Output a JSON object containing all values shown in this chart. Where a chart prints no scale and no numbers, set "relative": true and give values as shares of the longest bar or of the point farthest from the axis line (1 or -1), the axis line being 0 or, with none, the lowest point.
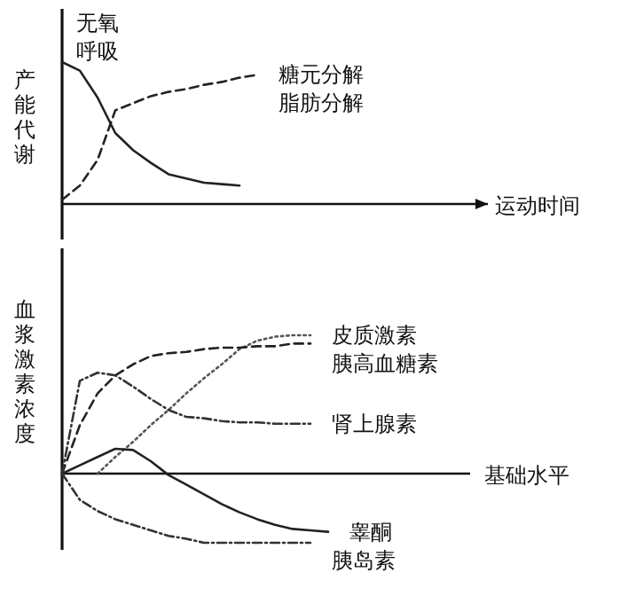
{
  "chart_data": [
    {
      "type": "line",
      "relative": true,
      "ylabel": "产能代谢",
      "xlabel": "运动时间",
      "categories": [
        null,
        null,
        null,
        null,
        null,
        null,
        null,
        null,
        null,
        null,
        null,
        null,
        null,
        null,
        null,
        null,
        null,
        null,
        null,
        null,
        null,
        null,
        null,
        null
      ],
      "series": [
        {
          "name": "无氧呼吸",
          "color": "#222222",
          "line_style": "solid",
          "values": [
            1,
            0.94,
            0.75,
            0.5,
            0.38,
            0.29,
            0.21,
            0.18,
            0.15,
            0.14,
            0.13,
            null,
            null,
            null,
            null,
            null,
            null,
            null,
            null,
            null,
            null,
            null,
            null,
            null
          ]
        },
        {
          "name": "糖元分解脂肪分解",
          "color": "#222222",
          "line_style": "dashed",
          "values": [
            0.03,
            0.13,
            0.31,
            0.66,
            0.71,
            0.76,
            0.79,
            0.81,
            0.84,
            0.86,
            0.89,
            0.91,
            null,
            null,
            null,
            null,
            null,
            null,
            null,
            null,
            null,
            null,
            null,
            null
          ]
        }
      ]
    },
    {
      "type": "line",
      "relative": true,
      "ylabel": "血浆激素浓度",
      "categories": [
        null,
        null,
        null,
        null,
        null,
        null,
        null,
        null,
        null,
        null,
        null,
        null,
        null,
        null,
        null,
        null,
        null,
        null,
        null,
        null,
        null,
        null,
        null,
        null
      ],
      "ref_lines": [
        {
          "axis": "y",
          "value": 0,
          "label": "基础水平"
        }
      ],
      "series": [
        {
          "name": "皮质激素",
          "color": "#555555",
          "line_style": "dotted",
          "values": [
            null,
            null,
            0,
            0.12,
            0.23,
            0.35,
            0.46,
            0.58,
            0.69,
            0.79,
            0.9,
            0.96,
            0.99,
            1,
            1,
            null,
            null,
            null,
            null,
            null,
            null,
            null,
            null,
            null
          ]
        },
        {
          "name": "胰高血糖素",
          "color": "#222222",
          "line_style": "dashed",
          "values": [
            0,
            0.35,
            0.58,
            0.71,
            0.79,
            0.85,
            0.87,
            0.88,
            0.9,
            0.91,
            0.91,
            0.92,
            0.92,
            0.94,
            0.94,
            null,
            null,
            null,
            null,
            null,
            null,
            null,
            null,
            null
          ]
        },
        {
          "name": "肾上腺素",
          "color": "#333333",
          "line_style": "dashdot",
          "values": [
            0,
            0.67,
            0.73,
            0.71,
            0.63,
            0.54,
            0.46,
            0.41,
            0.4,
            0.38,
            0.37,
            0.37,
            0.36,
            0.36,
            0.36,
            null,
            null,
            null,
            null,
            null,
            null,
            null,
            null,
            null
          ]
        },
        {
          "name": "睾酮",
          "color": "#222222",
          "line_style": "solid",
          "values": [
            0,
            0.06,
            0.12,
            0.18,
            0.17,
            0.09,
            -0.01,
            -0.08,
            -0.15,
            -0.22,
            -0.28,
            -0.33,
            -0.37,
            -0.4,
            -0.41,
            -0.42,
            null,
            null,
            null,
            null,
            null,
            null,
            null,
            null
          ]
        },
        {
          "name": "胰岛素",
          "color": "#333333",
          "line_style": "dashdot",
          "values": [
            0,
            -0.19,
            -0.27,
            -0.33,
            -0.37,
            -0.41,
            -0.45,
            -0.47,
            -0.5,
            -0.5,
            -0.5,
            -0.5,
            -0.5,
            -0.5,
            -0.5,
            null,
            null,
            null,
            null,
            null,
            null,
            null,
            null,
            null
          ]
        }
      ]
    }
  ]
}
